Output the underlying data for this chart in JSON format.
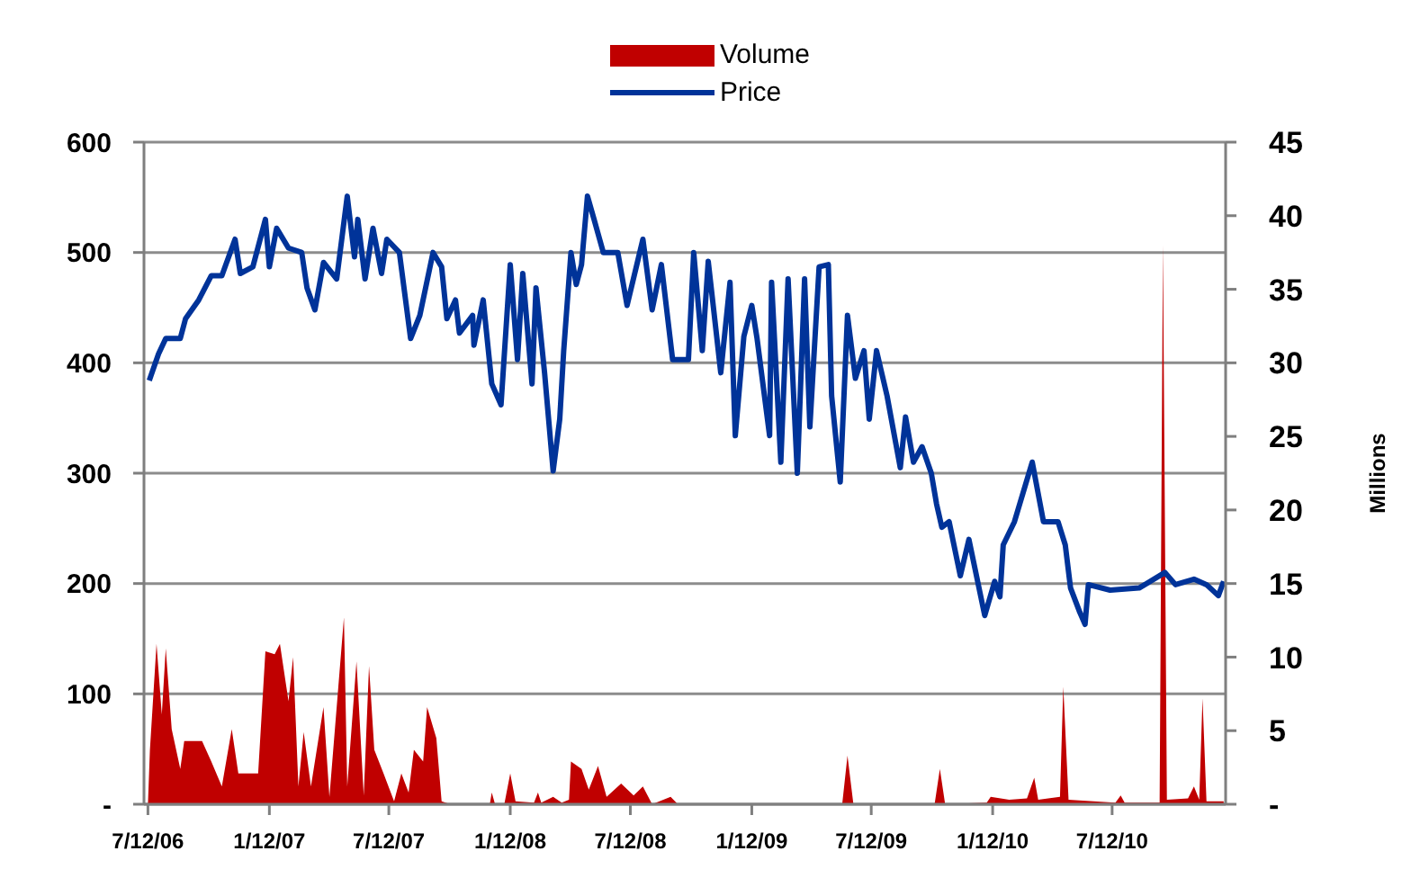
{
  "chart_data": {
    "type": "line",
    "y2label": "Millions",
    "xlim": [
      "2006-07-06",
      "2010-12-31"
    ],
    "xticks": [
      {
        "value": "2006-07-12",
        "label": "7/12/06"
      },
      {
        "value": "2007-01-12",
        "label": "1/12/07"
      },
      {
        "value": "2007-07-12",
        "label": "7/12/07"
      },
      {
        "value": "2008-01-12",
        "label": "1/12/08"
      },
      {
        "value": "2008-07-12",
        "label": "7/12/08"
      },
      {
        "value": "2009-01-12",
        "label": "1/12/09"
      },
      {
        "value": "2009-07-12",
        "label": "7/12/09"
      },
      {
        "value": "2010-01-12",
        "label": "1/12/10"
      },
      {
        "value": "2010-07-12",
        "label": "7/12/10"
      }
    ],
    "ylim": [
      0,
      600
    ],
    "yticks": [
      {
        "value": 0,
        "label": "-"
      },
      100,
      200,
      300,
      400,
      500,
      600
    ],
    "y2lim": [
      0,
      45
    ],
    "y2ticks": [
      {
        "value": 0,
        "label": "-"
      },
      5,
      10,
      15,
      20,
      25,
      30,
      35,
      40,
      45
    ],
    "grid": "y",
    "legend": "top",
    "series": [
      {
        "name": "Volume",
        "type": "area",
        "axis": "y2",
        "color": "#c00000",
        "x": [
          "2006-07-12",
          "2006-07-15",
          "2006-07-25",
          "2006-08-02",
          "2006-08-08",
          "2006-08-17",
          "2006-08-30",
          "2006-09-05",
          "2006-10-02",
          "2006-10-16",
          "2006-11-01",
          "2006-11-16",
          "2006-11-26",
          "2006-12-26",
          "2007-01-06",
          "2007-01-20",
          "2007-01-28",
          "2007-02-10",
          "2007-02-17",
          "2007-02-25",
          "2007-03-05",
          "2007-03-16",
          "2007-04-04",
          "2007-04-13",
          "2007-05-05",
          "2007-05-10",
          "2007-05-24",
          "2007-06-04",
          "2007-06-12",
          "2007-06-20",
          "2007-07-04",
          "2007-07-20",
          "2007-07-31",
          "2007-08-11",
          "2007-08-19",
          "2007-09-02",
          "2007-09-08",
          "2007-09-22",
          "2007-09-30",
          "2007-10-13",
          "2007-12-12",
          "2007-12-15",
          "2007-12-20",
          "2008-01-03",
          "2008-01-12",
          "2008-01-20",
          "2008-02-17",
          "2008-02-23",
          "2008-02-28",
          "2008-03-17",
          "2008-03-30",
          "2008-04-10",
          "2008-04-13",
          "2008-04-29",
          "2008-05-10",
          "2008-05-24",
          "2008-06-06",
          "2008-06-28",
          "2008-07-17",
          "2008-07-31",
          "2008-08-14",
          "2008-09-11",
          "2008-09-22",
          "2009-05-29",
          "2009-06-06",
          "2009-06-15",
          "2009-10-16",
          "2009-10-24",
          "2009-11-01",
          "2010-01-03",
          "2010-01-09",
          "2010-02-06",
          "2010-03-05",
          "2010-03-16",
          "2010-03-22",
          "2010-04-24",
          "2010-04-29",
          "2010-05-07",
          "2010-07-17",
          "2010-07-25",
          "2010-07-31",
          "2010-09-22",
          "2010-09-27",
          "2010-10-03",
          "2010-11-04",
          "2010-11-13",
          "2010-11-21",
          "2010-11-26",
          "2010-12-02",
          "2010-12-28"
        ],
        "values": [
          0,
          3.7,
          10.9,
          6.1,
          10.6,
          5.1,
          2.4,
          4.3,
          4.3,
          2.9,
          1.2,
          5.1,
          2.1,
          2.1,
          10.4,
          10.2,
          10.9,
          7.0,
          10.0,
          1.2,
          4.9,
          1.2,
          6.6,
          0.5,
          12.7,
          1.2,
          9.7,
          0.6,
          9.4,
          3.7,
          2.1,
          0.2,
          2.1,
          0.8,
          3.7,
          2.9,
          6.6,
          4.5,
          0.2,
          0,
          0,
          0.8,
          0,
          0,
          2.1,
          0.2,
          0.1,
          0.8,
          0.1,
          0.5,
          0.1,
          0.3,
          2.9,
          2.4,
          1.0,
          2.6,
          0.5,
          1.4,
          0.6,
          1.2,
          0,
          0.5,
          0,
          0,
          3.3,
          0,
          0,
          2.4,
          0,
          0.1,
          0.5,
          0.3,
          0.4,
          1.8,
          0.3,
          0.5,
          8,
          0.3,
          0.1,
          0.6,
          0.1,
          0.1,
          38,
          0.3,
          0.4,
          1.2,
          0.3,
          7.2,
          0.2,
          0.2
        ]
      },
      {
        "name": "Price",
        "color": "#003399",
        "x": [
          "2006-07-14",
          "2006-07-28",
          "2006-08-08",
          "2006-08-30",
          "2006-09-07",
          "2006-09-27",
          "2006-10-16",
          "2006-11-01",
          "2006-11-21",
          "2006-11-29",
          "2006-12-18",
          "2007-01-06",
          "2007-01-12",
          "2007-01-23",
          "2007-02-10",
          "2007-03-02",
          "2007-03-10",
          "2007-03-22",
          "2007-04-04",
          "2007-04-24",
          "2007-05-10",
          "2007-05-21",
          "2007-05-26",
          "2007-06-06",
          "2007-06-18",
          "2007-07-01",
          "2007-07-09",
          "2007-07-28",
          "2007-08-14",
          "2007-08-28",
          "2007-09-17",
          "2007-09-30",
          "2007-10-08",
          "2007-10-21",
          "2007-10-27",
          "2007-11-16",
          "2007-11-18",
          "2007-12-02",
          "2007-12-15",
          "2007-12-29",
          "2008-01-12",
          "2008-01-23",
          "2008-01-31",
          "2008-02-14",
          "2008-02-20",
          "2008-03-04",
          "2008-03-17",
          "2008-03-27",
          "2008-04-02",
          "2008-04-13",
          "2008-04-21",
          "2008-04-29",
          "2008-05-08",
          "2008-05-18",
          "2008-06-01",
          "2008-06-23",
          "2008-07-07",
          "2008-07-31",
          "2008-08-14",
          "2008-08-28",
          "2008-09-14",
          "2008-10-08",
          "2008-10-16",
          "2008-10-29",
          "2008-11-07",
          "2008-11-26",
          "2008-12-10",
          "2008-12-18",
          "2008-12-31",
          "2009-01-12",
          "2009-01-20",
          "2009-02-08",
          "2009-02-11",
          "2009-02-25",
          "2009-03-08",
          "2009-03-22",
          "2009-04-02",
          "2009-04-10",
          "2009-04-24",
          "2009-05-08",
          "2009-05-13",
          "2009-05-26",
          "2009-06-06",
          "2009-06-18",
          "2009-07-01",
          "2009-07-09",
          "2009-07-20",
          "2009-08-05",
          "2009-08-25",
          "2009-09-02",
          "2009-09-14",
          "2009-09-27",
          "2009-10-11",
          "2009-10-19",
          "2009-10-27",
          "2009-11-07",
          "2009-11-24",
          "2009-12-07",
          "2009-12-31",
          "2010-01-15",
          "2010-01-23",
          "2010-01-28",
          "2010-02-14",
          "2010-03-13",
          "2010-03-30",
          "2010-04-21",
          "2010-05-02",
          "2010-05-10",
          "2010-05-24",
          "2010-06-01",
          "2010-06-06",
          "2010-07-09",
          "2010-08-22",
          "2010-09-30",
          "2010-10-16",
          "2010-11-13",
          "2010-12-02",
          "2010-12-20",
          "2010-12-28"
        ],
        "values": [
          384,
          408,
          422,
          422,
          440,
          457,
          479,
          479,
          512,
          481,
          487,
          530,
          487,
          522,
          504,
          500,
          468,
          448,
          491,
          476,
          551,
          496,
          530,
          476,
          522,
          481,
          512,
          500,
          422,
          443,
          500,
          487,
          440,
          457,
          427,
          443,
          416,
          457,
          381,
          362,
          489,
          403,
          481,
          381,
          468,
          391,
          302,
          349,
          411,
          500,
          471,
          489,
          551,
          530,
          500,
          500,
          452,
          512,
          448,
          489,
          403,
          403,
          500,
          411,
          492,
          391,
          473,
          334,
          424,
          452,
          422,
          334,
          473,
          310,
          476,
          300,
          476,
          342,
          487,
          489,
          370,
          292,
          443,
          386,
          411,
          349,
          411,
          370,
          305,
          351,
          310,
          324,
          300,
          272,
          251,
          256,
          207,
          240,
          171,
          202,
          188,
          235,
          256,
          310,
          256,
          256,
          235,
          196,
          174,
          163,
          199,
          194,
          196,
          210,
          199,
          204,
          199,
          189,
          202
        ]
      }
    ]
  }
}
